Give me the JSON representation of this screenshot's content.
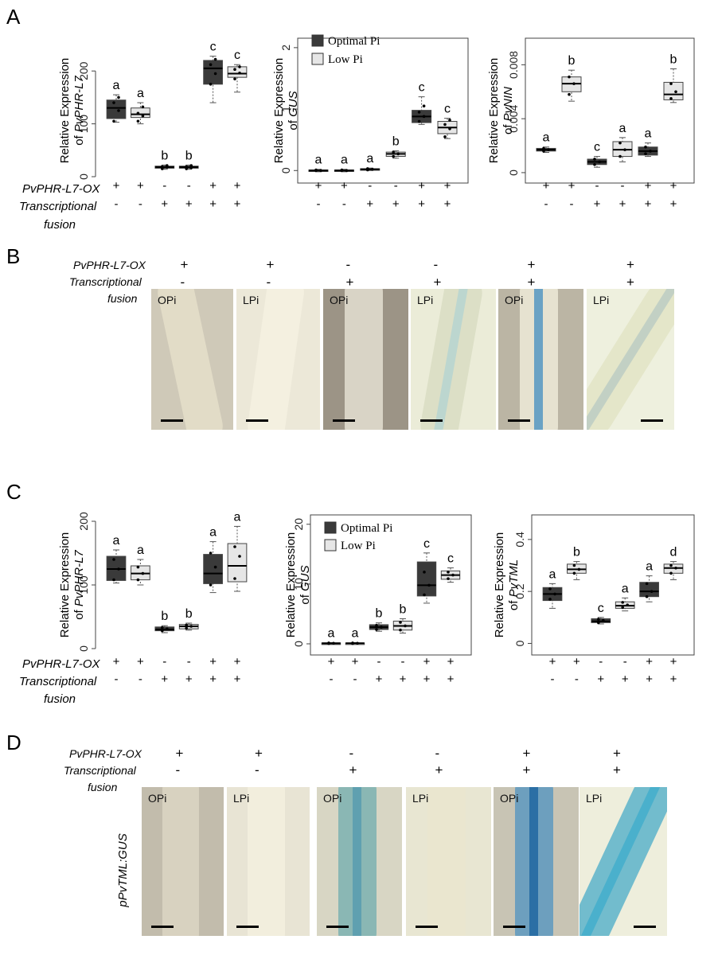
{
  "panels": {
    "A": "A",
    "B": "B",
    "C": "C",
    "D": "D"
  },
  "row_labels": {
    "overexpression": "PvPHR-L7-OX",
    "fusion_line1": "Transcriptional",
    "fusion_line2": "fusion"
  },
  "genotype_signs": {
    "ox": [
      "+",
      "+",
      "-",
      "-",
      "+",
      "+"
    ],
    "fusion": [
      "-",
      "-",
      "+",
      "+",
      "+",
      "+"
    ]
  },
  "legend": {
    "optimal": "Optimal Pi",
    "low": "Low Pi",
    "optimal_color": "#3a3a3a",
    "low_color": "#e6e6e6"
  },
  "photo_labels": [
    "OPi",
    "LPi",
    "OPi",
    "LPi",
    "OPi",
    "LPi"
  ],
  "panel_D_side_label": "pPvTML:GUS",
  "chart_data": [
    {
      "panel": "A",
      "type": "box",
      "ylabel_line1": "Relative Expression",
      "ylabel_prefix": "of ",
      "ylabel_gene": "PvPHR-L7",
      "ylim": [
        0,
        250
      ],
      "yticks": [
        0,
        100,
        200
      ],
      "groups": [
        {
          "median": 130,
          "q1": 110,
          "q3": 145,
          "min": 103,
          "max": 155,
          "points": [
            105,
            125,
            140,
            150
          ],
          "letter": "a",
          "condition": "optimal"
        },
        {
          "median": 118,
          "q1": 112,
          "q3": 130,
          "min": 100,
          "max": 140,
          "points": [
            105,
            115,
            120,
            132
          ],
          "letter": "a",
          "condition": "low"
        },
        {
          "median": 18,
          "q1": 16,
          "q3": 20,
          "min": 14,
          "max": 22,
          "points": [
            15,
            18,
            19,
            21
          ],
          "letter": "b",
          "condition": "optimal"
        },
        {
          "median": 18,
          "q1": 16,
          "q3": 20,
          "min": 14,
          "max": 22,
          "points": [
            15,
            17,
            19,
            21
          ],
          "letter": "b",
          "condition": "low"
        },
        {
          "median": 205,
          "q1": 175,
          "q3": 220,
          "min": 140,
          "max": 228,
          "points": [
            175,
            195,
            212,
            222
          ],
          "letter": "c",
          "condition": "optimal"
        },
        {
          "median": 195,
          "q1": 188,
          "q3": 208,
          "min": 160,
          "max": 212,
          "points": [
            185,
            196,
            203,
            208
          ],
          "letter": "c",
          "condition": "low"
        }
      ]
    },
    {
      "panel": "A",
      "type": "box",
      "ylabel_line1": "Relative Expression",
      "ylabel_prefix": "of ",
      "ylabel_gene": "GUS",
      "ylim": [
        -0.1,
        2.05
      ],
      "yticks": [
        0,
        1,
        2
      ],
      "groups": [
        {
          "median": 0.0,
          "q1": -0.01,
          "q3": 0.01,
          "min": -0.02,
          "max": 0.02,
          "points": [
            0,
            0,
            0.01
          ],
          "letter": "a",
          "condition": "optimal"
        },
        {
          "median": 0.0,
          "q1": -0.01,
          "q3": 0.01,
          "min": -0.02,
          "max": 0.02,
          "points": [
            0,
            0,
            0.01
          ],
          "letter": "a",
          "condition": "low"
        },
        {
          "median": 0.02,
          "q1": 0.01,
          "q3": 0.03,
          "min": 0.0,
          "max": 0.04,
          "points": [
            0.01,
            0.02,
            0.03
          ],
          "letter": "a",
          "condition": "optimal"
        },
        {
          "median": 0.27,
          "q1": 0.23,
          "q3": 0.3,
          "min": 0.2,
          "max": 0.32,
          "points": [
            0.23,
            0.27,
            0.3
          ],
          "letter": "b",
          "condition": "low"
        },
        {
          "median": 0.88,
          "q1": 0.78,
          "q3": 0.98,
          "min": 0.75,
          "max": 1.2,
          "points": [
            0.8,
            0.88,
            0.95,
            1.05
          ],
          "letter": "c",
          "condition": "optimal"
        },
        {
          "median": 0.7,
          "q1": 0.6,
          "q3": 0.8,
          "min": 0.52,
          "max": 0.85,
          "points": [
            0.55,
            0.68,
            0.75,
            0.82
          ],
          "letter": "c",
          "condition": "low"
        }
      ]
    },
    {
      "panel": "A",
      "type": "box",
      "ylabel_line1": "Relative Expression",
      "ylabel_prefix": "of ",
      "ylabel_gene": "PvNIN",
      "ylim": [
        -0.0003,
        0.0095
      ],
      "yticks": [
        0,
        0.004,
        0.008
      ],
      "groups": [
        {
          "median": 0.0017,
          "q1": 0.0016,
          "q3": 0.0018,
          "min": 0.0015,
          "max": 0.0019,
          "points": [
            0.0016,
            0.0017,
            0.0018
          ],
          "letter": "a",
          "condition": "optimal"
        },
        {
          "median": 0.0066,
          "q1": 0.006,
          "q3": 0.0071,
          "min": 0.0053,
          "max": 0.0076,
          "points": [
            0.0058,
            0.0066,
            0.0071
          ],
          "letter": "b",
          "condition": "low"
        },
        {
          "median": 0.0008,
          "q1": 0.0006,
          "q3": 0.001,
          "min": 0.0004,
          "max": 0.0012,
          "points": [
            0.0006,
            0.0008,
            0.001
          ],
          "letter": "c",
          "condition": "optimal"
        },
        {
          "median": 0.0017,
          "q1": 0.0012,
          "q3": 0.0023,
          "min": 0.0008,
          "max": 0.0026,
          "points": [
            0.0012,
            0.0017,
            0.0022
          ],
          "letter": "a",
          "condition": "low"
        },
        {
          "median": 0.0016,
          "q1": 0.0013,
          "q3": 0.0019,
          "min": 0.0012,
          "max": 0.0022,
          "points": [
            0.0014,
            0.0016,
            0.0019
          ],
          "letter": "a",
          "condition": "optimal"
        },
        {
          "median": 0.0058,
          "q1": 0.0054,
          "q3": 0.0067,
          "min": 0.0052,
          "max": 0.0077,
          "points": [
            0.0055,
            0.006,
            0.0066
          ],
          "letter": "b",
          "condition": "low"
        }
      ]
    },
    {
      "panel": "C",
      "type": "box",
      "ylabel_line1": "Relative Expression",
      "ylabel_prefix": "of ",
      "ylabel_gene": "PvPHR-L7",
      "ylim": [
        0,
        200
      ],
      "yticks": [
        0,
        100,
        200
      ],
      "groups": [
        {
          "median": 125,
          "q1": 107,
          "q3": 145,
          "min": 103,
          "max": 155,
          "points": [
            108,
            125,
            140
          ],
          "letter": "a",
          "condition": "optimal"
        },
        {
          "median": 118,
          "q1": 108,
          "q3": 130,
          "min": 100,
          "max": 140,
          "points": [
            108,
            118,
            128
          ],
          "letter": "a",
          "condition": "low"
        },
        {
          "median": 30,
          "q1": 28,
          "q3": 34,
          "min": 25,
          "max": 36,
          "points": [
            28,
            31,
            33
          ],
          "letter": "b",
          "condition": "optimal"
        },
        {
          "median": 35,
          "q1": 31,
          "q3": 38,
          "min": 29,
          "max": 40,
          "points": [
            32,
            35,
            37
          ],
          "letter": "b",
          "condition": "low"
        },
        {
          "median": 118,
          "q1": 102,
          "q3": 148,
          "min": 88,
          "max": 168,
          "points": [
            100,
            128,
            150
          ],
          "letter": "a",
          "condition": "optimal"
        },
        {
          "median": 130,
          "q1": 105,
          "q3": 165,
          "min": 90,
          "max": 192,
          "points": [
            110,
            145,
            160
          ],
          "letter": "a",
          "condition": "low"
        }
      ]
    },
    {
      "panel": "C",
      "type": "box",
      "ylabel_line1": "Relative Expression",
      "ylabel_prefix": "of ",
      "ylabel_gene": "GUS",
      "ylim": [
        -0.8,
        20.5
      ],
      "yticks": [
        0,
        10,
        20
      ],
      "groups": [
        {
          "median": 0.1,
          "q1": 0.05,
          "q3": 0.15,
          "min": 0.0,
          "max": 0.2,
          "points": [
            0.05,
            0.1,
            0.15
          ],
          "letter": "a",
          "condition": "optimal"
        },
        {
          "median": 0.1,
          "q1": 0.05,
          "q3": 0.15,
          "min": 0.0,
          "max": 0.2,
          "points": [
            0.05,
            0.1,
            0.15
          ],
          "letter": "a",
          "condition": "low"
        },
        {
          "median": 2.8,
          "q1": 2.4,
          "q3": 3.2,
          "min": 2.1,
          "max": 3.5,
          "points": [
            2.4,
            2.8,
            3.1
          ],
          "letter": "b",
          "condition": "optimal"
        },
        {
          "median": 3.0,
          "q1": 2.3,
          "q3": 3.8,
          "min": 1.8,
          "max": 4.2,
          "points": [
            2.3,
            3.0,
            3.6
          ],
          "letter": "b",
          "condition": "low"
        },
        {
          "median": 9.8,
          "q1": 8.0,
          "q3": 13.7,
          "min": 6.8,
          "max": 15.2,
          "points": [
            8.2,
            9.8,
            12.0
          ],
          "letter": "c",
          "condition": "optimal"
        },
        {
          "median": 11.5,
          "q1": 10.8,
          "q3": 12.2,
          "min": 10.3,
          "max": 12.7,
          "points": [
            10.9,
            11.5,
            12.0
          ],
          "letter": "c",
          "condition": "low"
        }
      ]
    },
    {
      "panel": "C",
      "type": "box",
      "ylabel_line1": "Relative Expression",
      "ylabel_prefix": "of ",
      "ylabel_gene": "PvTML",
      "ylim": [
        -0.02,
        0.47
      ],
      "yticks": [
        0,
        0.2,
        0.4
      ],
      "groups": [
        {
          "median": 0.19,
          "q1": 0.165,
          "q3": 0.215,
          "min": 0.135,
          "max": 0.23,
          "points": [
            0.17,
            0.19,
            0.21
          ],
          "letter": "a",
          "condition": "optimal"
        },
        {
          "median": 0.285,
          "q1": 0.27,
          "q3": 0.305,
          "min": 0.245,
          "max": 0.315,
          "points": [
            0.27,
            0.285,
            0.3
          ],
          "letter": "b",
          "condition": "low"
        },
        {
          "median": 0.085,
          "q1": 0.08,
          "q3": 0.095,
          "min": 0.075,
          "max": 0.1,
          "points": [
            0.08,
            0.088,
            0.093
          ],
          "letter": "c",
          "condition": "optimal"
        },
        {
          "median": 0.145,
          "q1": 0.135,
          "q3": 0.16,
          "min": 0.125,
          "max": 0.175,
          "points": [
            0.138,
            0.148,
            0.158
          ],
          "letter": "a",
          "condition": "low"
        },
        {
          "median": 0.2,
          "q1": 0.18,
          "q3": 0.235,
          "min": 0.16,
          "max": 0.26,
          "points": [
            0.18,
            0.2,
            0.23
          ],
          "letter": "a",
          "condition": "optimal"
        },
        {
          "median": 0.29,
          "q1": 0.27,
          "q3": 0.305,
          "min": 0.245,
          "max": 0.315,
          "points": [
            0.27,
            0.29,
            0.3
          ],
          "letter": "d",
          "condition": "low"
        }
      ]
    }
  ]
}
